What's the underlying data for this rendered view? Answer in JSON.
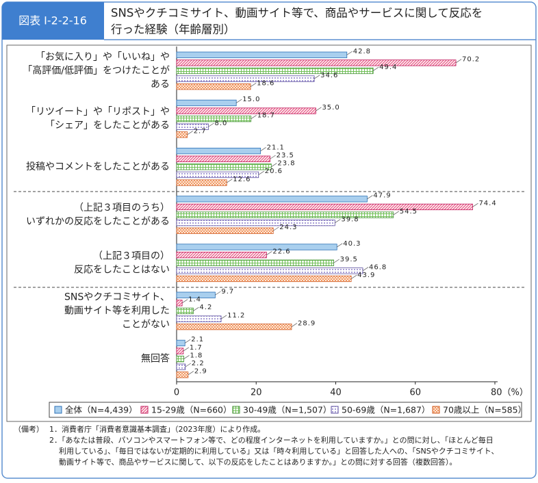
{
  "header": {
    "tag": "図表 I-2-2-16",
    "title": [
      "SNSやクチコミサイト、動画サイト等で、商品やサービスに関して反応を",
      "行った経験（年齢層別）"
    ]
  },
  "chart_data": {
    "type": "barh",
    "categories": [
      [
        "「お気に入り」や「いいね」や",
        "「高評価/低評価」をつけたことが",
        "ある"
      ],
      [
        "「リツイート」や「リポスト」や",
        "「シェア」をしたことがある"
      ],
      [
        "投稿やコメントをしたことがある"
      ],
      [
        "（上記３項目のうち）",
        "いずれかの反応をしたことがある"
      ],
      [
        "（上記３項目の）",
        "反応をしたことはない"
      ],
      [
        "SNSやクチコミサイト、",
        "動画サイト等を利用した",
        "ことがない"
      ],
      [
        "無回答"
      ]
    ],
    "series": [
      {
        "name": "全体（N=4,439）",
        "color": "#a9cfee",
        "edgecolor": "#2a6fb5",
        "pattern": "solid",
        "values": [
          42.8,
          15.0,
          21.1,
          47.9,
          40.3,
          9.7,
          2.1
        ],
        "value_labels": [
          "42.8",
          "15.0",
          "21.1",
          "47.9",
          "40.3",
          "9.7",
          "2.1"
        ]
      },
      {
        "name": "15-29歳（N=660）",
        "color": "#e8608a",
        "edgecolor": "#c2185b",
        "pattern": "hatch",
        "values": [
          70.2,
          35.0,
          23.5,
          74.4,
          22.6,
          1.4,
          1.7
        ],
        "value_labels": [
          "70.2",
          "35.0",
          "23.5",
          "74.4",
          "22.6",
          "1.4",
          "1.7"
        ]
      },
      {
        "name": "30-49歳（N=1,507）",
        "color": "#6fbf55",
        "edgecolor": "#3f8f2f",
        "pattern": "grid",
        "values": [
          49.4,
          18.7,
          23.8,
          54.5,
          39.5,
          4.2,
          1.8
        ],
        "value_labels": [
          "49.4",
          "18.7",
          "23.8",
          "54.5",
          "39.5",
          "4.2",
          "1.8"
        ]
      },
      {
        "name": "50-69歳（N=1,687）",
        "color": "#8a7cc8",
        "edgecolor": "#5b4ea0",
        "pattern": "dots",
        "values": [
          34.6,
          8.0,
          20.6,
          39.8,
          46.8,
          11.2,
          2.2
        ],
        "value_labels": [
          "34.6",
          "8.0",
          "20.6",
          "39.8",
          "46.8",
          "11.2",
          "2.2"
        ]
      },
      {
        "name": "70歳以上（N=585）",
        "color": "#f08a4b",
        "edgecolor": "#d0602a",
        "pattern": "cross",
        "values": [
          18.6,
          2.7,
          12.6,
          24.3,
          43.9,
          28.9,
          2.9
        ],
        "value_labels": [
          "18.6",
          "2.7",
          "12.6",
          "24.3",
          "43.9",
          "28.9",
          "2.9"
        ]
      }
    ],
    "xlim": [
      0,
      80
    ],
    "xticks": [
      0,
      20,
      40,
      60,
      {
        "value": 80,
        "label": "80（%）"
      }
    ]
  },
  "notes": {
    "label": "（備考）",
    "items": [
      [
        "1．消費者庁「消費者意識基本調査」（2023年度）により作成。"
      ],
      [
        "2．「あなたは普段、パソコンやスマートフォン等で、どの程度インターネットを利用していますか。」との問に対し、「ほとんど毎日",
        "利用している」、「毎日ではないが定期的に利用している」又は「時々利用している」と回答した人への、「SNSやクチコミサイト、",
        "動画サイト等で、商品やサービスに関して、以下の反応をしたことはありますか。」との問に対する回答（複数回答）。"
      ]
    ]
  }
}
